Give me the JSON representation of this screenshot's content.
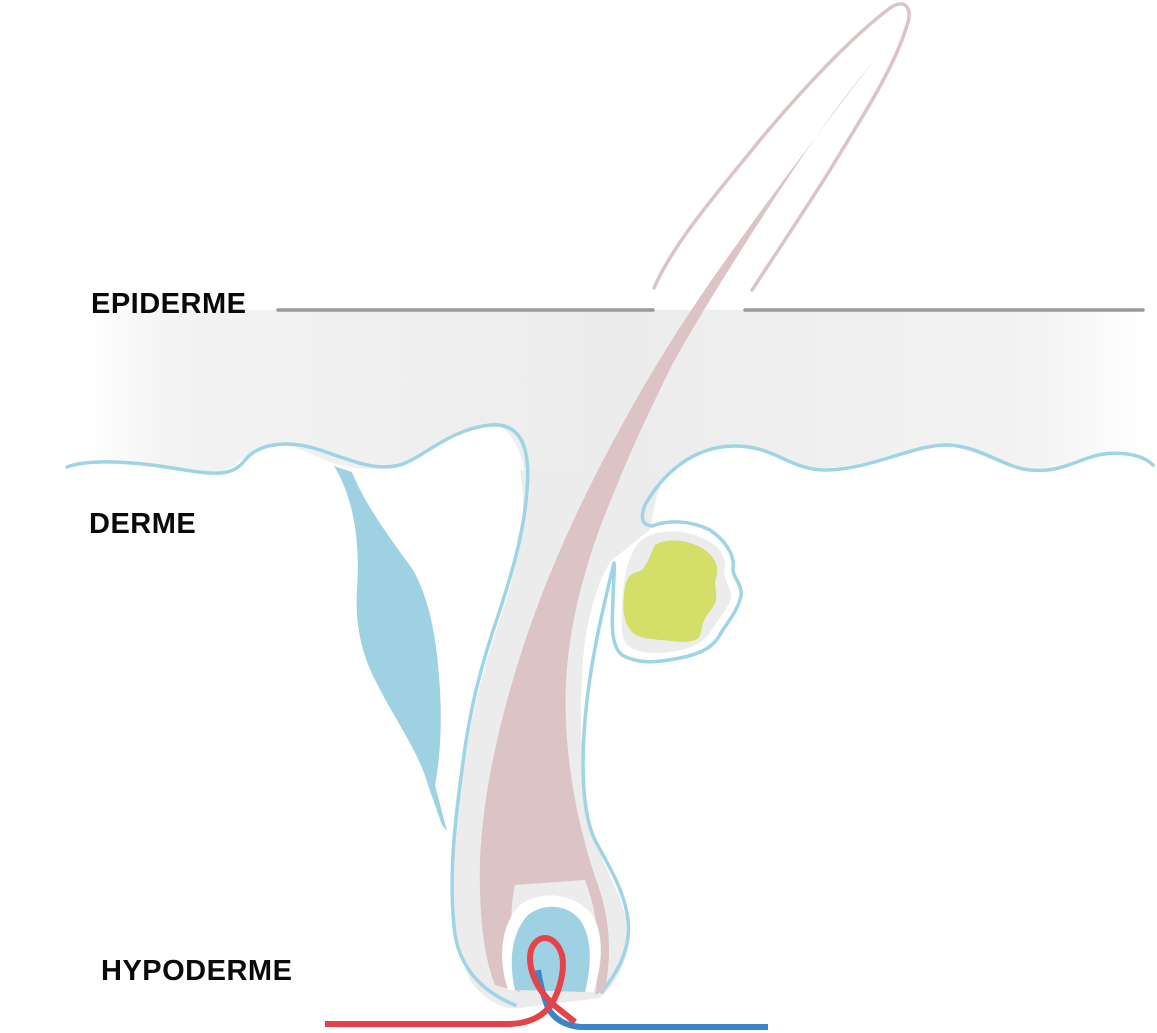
{
  "labels": {
    "epiderme": "EPIDERME",
    "derme": "DERME",
    "hypoderme": "HYPODERME"
  },
  "colors": {
    "surface_line": "#9a9a9a",
    "epidermis_fill": "#efefef",
    "layer_outline": "#9fd3e6",
    "hair_shaft": "#dcc4c6",
    "hair_outline": "#dcc4c6",
    "follicle_sheath": "#ececec",
    "arrector_muscle": "#9ed1e2",
    "sebaceous_gland": "#d4df6a",
    "papilla": "#9ed1e2",
    "artery": "#e5434a",
    "vein": "#3a86c6",
    "label_text": "#0a0a0a"
  }
}
